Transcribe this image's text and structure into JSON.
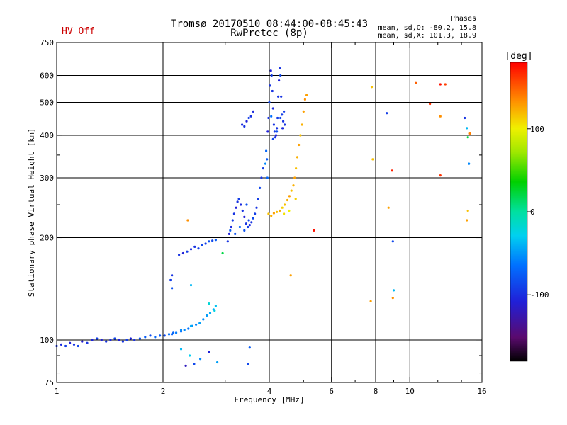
{
  "header": {
    "title": "Tromsø 20170510 08:44:00-08:45:43",
    "subtitle": "RwPretec (8p)",
    "status": "HV Off",
    "status_color": "#cc0000"
  },
  "stats": {
    "title": "Phases",
    "line1": "mean, sd,O: -80.2, 15.8",
    "line2": "mean, sd,X: 101.3, 18.9"
  },
  "chart_data": {
    "type": "scatter",
    "xlabel": "Frequency [MHz]",
    "ylabel": "Stationary phase Virtual Height [km]",
    "x_scale": "log",
    "y_scale": "log",
    "xlim": [
      1,
      16
    ],
    "ylim": [
      75,
      750
    ],
    "x_ticks": [
      1,
      2,
      4,
      6,
      8,
      10,
      16
    ],
    "x_tick_labels": [
      "1",
      "2",
      "4",
      "6",
      "8",
      "10",
      "16"
    ],
    "x_minor_ticks": [
      3,
      5,
      7,
      9,
      12,
      14
    ],
    "y_ticks": [
      75,
      100,
      200,
      300,
      400,
      500,
      600,
      750
    ],
    "y_tick_labels": [
      "75",
      "100",
      "200",
      "300",
      "400",
      "500",
      "600",
      "750"
    ],
    "y_minor_ticks": [
      80,
      90,
      150,
      250,
      350,
      450
    ],
    "grid": true,
    "colorbar": {
      "label": "[deg]",
      "range": [
        -180,
        180
      ],
      "ticks": [
        100,
        0,
        -100
      ],
      "tick_labels": [
        "100",
        "0",
        "-100"
      ]
    },
    "series": [
      {
        "points": [
          [
            1.0,
            96,
            -100
          ],
          [
            1.03,
            97,
            -105
          ],
          [
            1.06,
            96,
            -95
          ],
          [
            1.09,
            98,
            -110
          ],
          [
            1.12,
            97,
            -100
          ],
          [
            1.15,
            96,
            -92
          ],
          [
            1.18,
            99,
            -115
          ],
          [
            1.22,
            98,
            -100
          ],
          [
            1.26,
            100,
            -108
          ],
          [
            1.3,
            101,
            -95
          ],
          [
            1.34,
            100,
            -110
          ],
          [
            1.38,
            99,
            -100
          ],
          [
            1.42,
            100,
            -105
          ],
          [
            1.46,
            101,
            -92
          ],
          [
            1.5,
            100,
            -110
          ],
          [
            1.54,
            99,
            -100
          ],
          [
            1.58,
            100,
            -95
          ],
          [
            1.62,
            101,
            -108
          ],
          [
            1.66,
            100,
            -102
          ],
          [
            1.72,
            101,
            -85
          ],
          [
            1.78,
            102,
            -80
          ],
          [
            1.84,
            103,
            -88
          ],
          [
            1.9,
            102,
            -75
          ],
          [
            1.96,
            103,
            -82
          ],
          [
            2.02,
            103,
            -90
          ],
          [
            2.08,
            104,
            -70
          ],
          [
            2.12,
            104,
            -78
          ],
          [
            2.18,
            105,
            -65
          ],
          [
            2.25,
            106,
            -70
          ],
          [
            2.3,
            107,
            -60
          ],
          [
            2.36,
            108,
            -68
          ],
          [
            2.42,
            110,
            -55
          ],
          [
            2.48,
            111,
            -62
          ],
          [
            2.54,
            112,
            -50
          ],
          [
            2.6,
            115,
            -58
          ],
          [
            2.66,
            118,
            -52
          ],
          [
            2.72,
            120,
            -45
          ],
          [
            2.78,
            123,
            -40
          ],
          [
            2.82,
            126,
            -35
          ],
          [
            2.14,
            105,
            -75
          ],
          [
            2.25,
            107,
            -60
          ],
          [
            2.4,
            110,
            -45
          ],
          [
            2.7,
            128,
            -20
          ],
          [
            2.8,
            122,
            -25
          ],
          [
            2.1,
            150,
            -95
          ],
          [
            2.12,
            155,
            -100
          ],
          [
            2.12,
            142,
            -85
          ],
          [
            2.22,
            178,
            -100
          ],
          [
            2.28,
            180,
            -110
          ],
          [
            2.34,
            182,
            -95
          ],
          [
            2.4,
            185,
            -105
          ],
          [
            2.46,
            188,
            -100
          ],
          [
            2.52,
            186,
            -95
          ],
          [
            2.58,
            190,
            -90
          ],
          [
            2.64,
            192,
            -95
          ],
          [
            2.7,
            195,
            -85
          ],
          [
            2.76,
            196,
            -90
          ],
          [
            2.82,
            197,
            -80
          ],
          [
            2.35,
            225,
            135
          ],
          [
            2.95,
            180,
            20
          ],
          [
            2.4,
            145,
            -40
          ],
          [
            2.38,
            90,
            -30
          ],
          [
            2.45,
            85,
            -90
          ],
          [
            2.55,
            88,
            -60
          ],
          [
            2.7,
            92,
            -110
          ],
          [
            2.85,
            86,
            -50
          ],
          [
            2.25,
            94,
            -40
          ],
          [
            2.32,
            84,
            -120
          ],
          [
            3.05,
            195,
            -100
          ],
          [
            3.08,
            205,
            -110
          ],
          [
            3.12,
            215,
            -105
          ],
          [
            3.15,
            225,
            -95
          ],
          [
            3.18,
            235,
            -100
          ],
          [
            3.22,
            245,
            -110
          ],
          [
            3.25,
            255,
            -100
          ],
          [
            3.28,
            260,
            -95
          ],
          [
            3.32,
            250,
            -105
          ],
          [
            3.36,
            240,
            -100
          ],
          [
            3.4,
            230,
            -110
          ],
          [
            3.44,
            220,
            -100
          ],
          [
            3.48,
            215,
            -95
          ],
          [
            3.52,
            218,
            -105
          ],
          [
            3.56,
            222,
            -100
          ],
          [
            3.6,
            228,
            -90
          ],
          [
            3.64,
            235,
            -95
          ],
          [
            3.68,
            245,
            -100
          ],
          [
            3.72,
            260,
            -95
          ],
          [
            3.76,
            280,
            -90
          ],
          [
            3.8,
            300,
            -100
          ],
          [
            3.84,
            320,
            -95
          ],
          [
            3.1,
            210,
            -80
          ],
          [
            3.2,
            205,
            -85
          ],
          [
            3.3,
            215,
            -75
          ],
          [
            3.4,
            210,
            -85
          ],
          [
            3.5,
            225,
            -90
          ],
          [
            3.45,
            250,
            -85
          ],
          [
            3.35,
            430,
            -105
          ],
          [
            3.4,
            425,
            -100
          ],
          [
            3.45,
            440,
            -110
          ],
          [
            3.5,
            450,
            -95
          ],
          [
            3.55,
            455,
            -100
          ],
          [
            3.6,
            470,
            -105
          ],
          [
            3.48,
            85,
            -90
          ],
          [
            3.52,
            95,
            -80
          ],
          [
            3.96,
            410,
            -110
          ],
          [
            3.98,
            450,
            -100
          ],
          [
            4.0,
            500,
            -90
          ],
          [
            4.02,
            560,
            -100
          ],
          [
            4.04,
            620,
            -110
          ],
          [
            4.06,
            600,
            -95
          ],
          [
            4.08,
            540,
            -100
          ],
          [
            4.1,
            480,
            -105
          ],
          [
            4.12,
            430,
            -100
          ],
          [
            4.14,
            410,
            -95
          ],
          [
            4.16,
            395,
            -100
          ],
          [
            4.18,
            400,
            -110
          ],
          [
            4.2,
            420,
            -100
          ],
          [
            4.22,
            450,
            -95
          ],
          [
            4.24,
            520,
            -100
          ],
          [
            4.26,
            580,
            -110
          ],
          [
            4.28,
            630,
            -100
          ],
          [
            4.3,
            600,
            -90
          ],
          [
            4.32,
            520,
            -100
          ],
          [
            4.34,
            460,
            -95
          ],
          [
            4.36,
            420,
            -105
          ],
          [
            4.38,
            440,
            -100
          ],
          [
            4.4,
            470,
            -95
          ],
          [
            4.42,
            430,
            -100
          ],
          [
            4.1,
            390,
            -90
          ],
          [
            4.2,
            410,
            -85
          ],
          [
            4.3,
            450,
            -90
          ],
          [
            4.05,
            455,
            -70
          ],
          [
            3.92,
            360,
            -75
          ],
          [
            3.94,
            340,
            -80
          ],
          [
            3.9,
            330,
            -60
          ],
          [
            3.95,
            300,
            -75
          ],
          [
            3.98,
            235,
            120
          ],
          [
            4.05,
            232,
            125
          ],
          [
            4.12,
            236,
            130
          ],
          [
            4.2,
            238,
            120
          ],
          [
            4.28,
            240,
            125
          ],
          [
            4.35,
            245,
            115
          ],
          [
            4.42,
            250,
            120
          ],
          [
            4.5,
            258,
            125
          ],
          [
            4.56,
            265,
            130
          ],
          [
            4.62,
            275,
            120
          ],
          [
            4.68,
            285,
            125
          ],
          [
            4.72,
            300,
            130
          ],
          [
            4.76,
            320,
            120
          ],
          [
            4.8,
            345,
            125
          ],
          [
            4.85,
            375,
            130
          ],
          [
            4.9,
            400,
            120
          ],
          [
            4.95,
            430,
            125
          ],
          [
            5.0,
            470,
            130
          ],
          [
            5.05,
            510,
            135
          ],
          [
            5.1,
            525,
            130
          ],
          [
            4.4,
            235,
            110
          ],
          [
            4.55,
            240,
            105
          ],
          [
            4.75,
            260,
            115
          ],
          [
            4.6,
            155,
            130
          ],
          [
            5.35,
            210,
            175
          ],
          [
            7.8,
            555,
            120
          ],
          [
            7.85,
            340,
            120
          ],
          [
            7.75,
            130,
            130
          ],
          [
            8.6,
            465,
            -95
          ],
          [
            8.7,
            245,
            130
          ],
          [
            8.9,
            315,
            170
          ],
          [
            8.95,
            195,
            -90
          ],
          [
            9.0,
            140,
            -40
          ],
          [
            8.95,
            133,
            135
          ],
          [
            10.4,
            570,
            150
          ],
          [
            11.4,
            495,
            165
          ],
          [
            12.2,
            565,
            175
          ],
          [
            12.6,
            565,
            160
          ],
          [
            12.2,
            455,
            135
          ],
          [
            12.2,
            305,
            165
          ],
          [
            14.3,
            450,
            -100
          ],
          [
            14.5,
            420,
            -40
          ],
          [
            14.6,
            395,
            20
          ],
          [
            14.7,
            330,
            -60
          ],
          [
            14.8,
            405,
            140
          ],
          [
            14.6,
            240,
            120
          ],
          [
            14.5,
            225,
            130
          ]
        ]
      }
    ]
  }
}
